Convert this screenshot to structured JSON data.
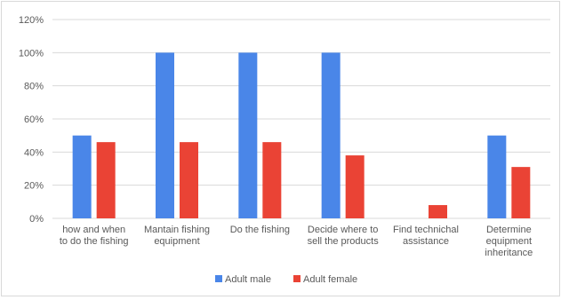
{
  "chart_data": {
    "type": "bar",
    "categories": [
      [
        "how and when",
        "to do the fishing"
      ],
      [
        "Mantain fishing",
        "equipment"
      ],
      [
        "Do the fishing"
      ],
      [
        "Decide where to",
        "sell the products"
      ],
      [
        "Find technichal",
        "assistance"
      ],
      [
        "Determine",
        "equipment",
        "inheritance"
      ]
    ],
    "series": [
      {
        "name": "Adult male",
        "color": "#4a86e8",
        "values": [
          50,
          100,
          100,
          100,
          0,
          50
        ]
      },
      {
        "name": "Adult female",
        "color": "#ea4335",
        "values": [
          46,
          46,
          46,
          38,
          8,
          31
        ]
      }
    ],
    "yticks": [
      "0%",
      "20%",
      "40%",
      "60%",
      "80%",
      "100%",
      "120%"
    ],
    "ylim": [
      0,
      120
    ],
    "grid": true,
    "legend_position": "bottom"
  }
}
